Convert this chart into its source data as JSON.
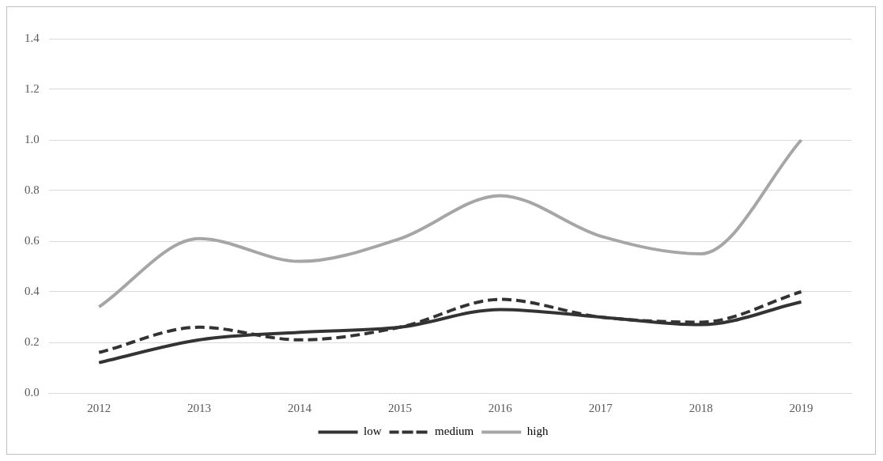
{
  "chart_data": {
    "type": "line",
    "categories": [
      "2012",
      "2013",
      "2014",
      "2015",
      "2016",
      "2017",
      "2018",
      "2019"
    ],
    "series": [
      {
        "name": "low",
        "color": "#333333",
        "line_style": "solid",
        "values": [
          0.12,
          0.21,
          0.24,
          0.26,
          0.33,
          0.3,
          0.27,
          0.36
        ]
      },
      {
        "name": "medium",
        "color": "#333333",
        "line_style": "dashed",
        "values": [
          0.16,
          0.26,
          0.21,
          0.26,
          0.37,
          0.3,
          0.28,
          0.4
        ]
      },
      {
        "name": "high",
        "color": "#a6a6a6",
        "line_style": "solid",
        "values": [
          0.34,
          0.61,
          0.52,
          0.61,
          0.78,
          0.62,
          0.55,
          1.0
        ]
      }
    ],
    "ylim": [
      0,
      1.4
    ],
    "yticks": [
      {
        "value": 0,
        "label": "0.0"
      },
      {
        "value": 0.2,
        "label": "0.2"
      },
      {
        "value": 0.4,
        "label": "0.4"
      },
      {
        "value": 0.6,
        "label": "0.6"
      },
      {
        "value": 0.8,
        "label": "0.8"
      },
      {
        "value": 1,
        "label": "1.0"
      },
      {
        "value": 1.2,
        "label": "1.2"
      },
      {
        "value": 1.4,
        "label": "1.4"
      }
    ],
    "grid": "y",
    "legend": "bottom",
    "marker": "none"
  }
}
